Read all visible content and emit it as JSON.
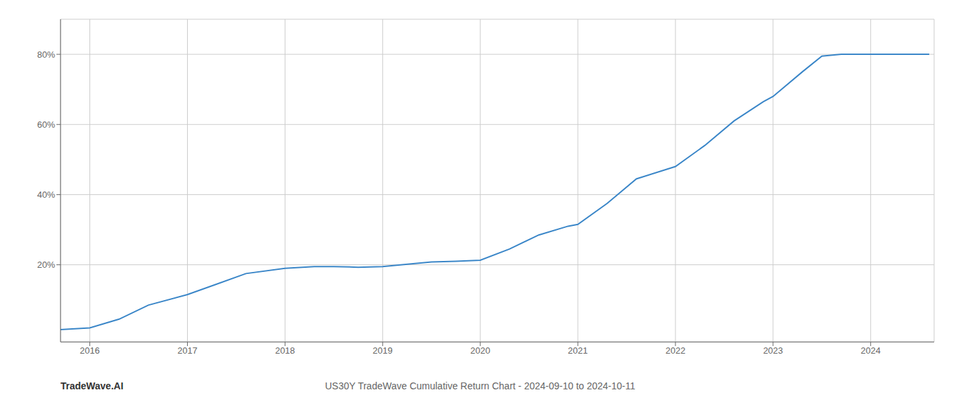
{
  "chart_data": {
    "type": "line",
    "title": "US30Y TradeWave Cumulative Return Chart - 2024-09-10 to 2024-10-11",
    "annotations": [
      "TradeWave.AI"
    ],
    "x": [
      2015.7,
      2016.0,
      2016.3,
      2016.6,
      2017.0,
      2017.3,
      2017.6,
      2018.0,
      2018.3,
      2018.5,
      2018.75,
      2019.0,
      2019.2,
      2019.5,
      2019.75,
      2020.0,
      2020.3,
      2020.6,
      2020.9,
      2021.0,
      2021.3,
      2021.6,
      2022.0,
      2022.3,
      2022.6,
      2022.9,
      2023.0,
      2023.3,
      2023.5,
      2023.7,
      2024.0,
      2024.3,
      2024.6
    ],
    "values": [
      1.5,
      2.0,
      4.5,
      8.5,
      11.5,
      14.5,
      17.5,
      19.0,
      19.5,
      19.5,
      19.3,
      19.5,
      20.0,
      20.8,
      21.0,
      21.3,
      24.5,
      28.5,
      31.0,
      31.5,
      37.5,
      44.5,
      48.0,
      54.0,
      61.0,
      66.5,
      68.0,
      75.0,
      79.5,
      80.0,
      80.0,
      80.0,
      80.0
    ],
    "color": "#3a86c8",
    "xlim": [
      2015.7,
      2024.65
    ],
    "xticks": [
      2016,
      2017,
      2018,
      2019,
      2020,
      2021,
      2022,
      2023,
      2024
    ],
    "ylim": [
      -2,
      90
    ],
    "yticks": [
      {
        "value": 20,
        "label": "20%"
      },
      {
        "value": 40,
        "label": "40%"
      },
      {
        "value": 60,
        "label": "60%"
      },
      {
        "value": 80,
        "label": "80%"
      }
    ],
    "grid": true
  }
}
